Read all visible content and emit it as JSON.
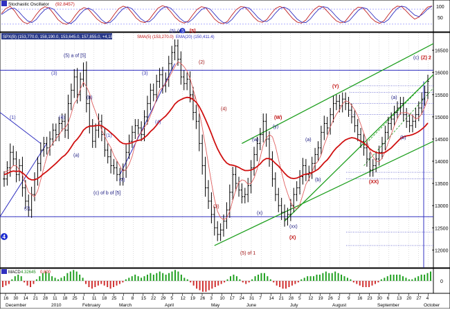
{
  "chart_data": {
    "type": "line",
    "stochastic_panel": {
      "title": "Stochastic Oscillator",
      "value_label": "(92.8457)",
      "ylim": [
        0,
        100
      ],
      "ticks": [
        "100",
        "50"
      ],
      "k_line": [
        62,
        82,
        91,
        74,
        48,
        29,
        21,
        33,
        58,
        79,
        90,
        84,
        62,
        38,
        24,
        19,
        30,
        55,
        76,
        86,
        80,
        60,
        40,
        27,
        22,
        35,
        60,
        82,
        92,
        86,
        66,
        44,
        30,
        26,
        38,
        62,
        84,
        94,
        88,
        68,
        46,
        31,
        24,
        33,
        57,
        79,
        90,
        85,
        63,
        40,
        26,
        21,
        31,
        56,
        78,
        90,
        88,
        70,
        48,
        32,
        27,
        38,
        61,
        82,
        91,
        84,
        62,
        42,
        28,
        24,
        36,
        60,
        80,
        92,
        88,
        70,
        50,
        33,
        25,
        30,
        52,
        74,
        88,
        86,
        67,
        45,
        30,
        23,
        34,
        58,
        80,
        92,
        90,
        74,
        55,
        40,
        48,
        70,
        88,
        93
      ],
      "d_line": [
        58,
        70,
        82,
        84,
        70,
        50,
        33,
        26,
        38,
        60,
        78,
        86,
        80,
        60,
        40,
        26,
        22,
        36,
        58,
        76,
        84,
        76,
        58,
        38,
        25,
        26,
        42,
        64,
        82,
        89,
        82,
        62,
        42,
        30,
        29,
        44,
        66,
        84,
        90,
        83,
        64,
        44,
        30,
        27,
        40,
        60,
        78,
        86,
        80,
        60,
        40,
        26,
        24,
        38,
        60,
        80,
        88,
        84,
        66,
        46,
        32,
        30,
        42,
        64,
        82,
        88,
        80,
        60,
        40,
        28,
        26,
        40,
        62,
        80,
        90,
        86,
        70,
        50,
        33,
        26,
        34,
        54,
        74,
        86,
        82,
        64,
        44,
        30,
        26,
        38,
        62,
        82,
        92,
        88,
        72,
        56,
        50,
        62,
        80,
        92
      ],
      "reference_lines": [
        80,
        20
      ]
    },
    "price_panel": {
      "header": "SPX(B) (153,770.0, 158,190.0, 153,645.0, 157,855.0, +4,185.00)",
      "sma_label": "SMA(5) (153,270.0)",
      "ema_label": "EMA(20) (150,411.4)",
      "y_ticks": [
        16500,
        16000,
        15500,
        15000,
        14500,
        14000,
        13500,
        13000,
        12500,
        12000
      ],
      "ylim": [
        11600,
        16900
      ],
      "closes": [
        13600,
        13850,
        14200,
        14050,
        13700,
        13900,
        13400,
        13100,
        12900,
        13250,
        13600,
        13950,
        14250,
        14400,
        14300,
        14500,
        14700,
        14600,
        14850,
        14900,
        14700,
        15300,
        15600,
        15900,
        15500,
        15850,
        16050,
        15300,
        14800,
        14450,
        14700,
        14900,
        14600,
        14250,
        14100,
        13900,
        13850,
        13700,
        13600,
        13800,
        14200,
        14450,
        14650,
        14800,
        14750,
        14600,
        15000,
        15300,
        15600,
        15500,
        15800,
        15950,
        15700,
        15850,
        16200,
        16450,
        16600,
        16300,
        15900,
        15750,
        15850,
        15500,
        15100,
        14900,
        14400,
        13900,
        13400,
        13100,
        12800,
        12500,
        12350,
        12450,
        12650,
        12900,
        13300,
        13700,
        13500,
        13350,
        13200,
        13250,
        13450,
        13850,
        14150,
        14400,
        14600,
        14900,
        14500,
        14050,
        13600,
        13250,
        13000,
        12850,
        12700,
        12800,
        13000,
        13250,
        13400,
        13650,
        13900,
        13700,
        13750,
        13950,
        14150,
        14300,
        14650,
        14850,
        14750,
        15050,
        15300,
        15350,
        15250,
        15400,
        15300,
        15150,
        15000,
        14800,
        14600,
        14450,
        14300,
        14050,
        13800,
        13900,
        14050,
        14200,
        14400,
        14650,
        14850,
        14950,
        15100,
        15200,
        15300,
        15050,
        14900,
        14800,
        14900,
        15050,
        15200,
        15400,
        15550,
        15800
      ],
      "ema_line": [
        13700,
        13720,
        13760,
        13780,
        13770,
        13780,
        13740,
        13680,
        13610,
        13580,
        13580,
        13610,
        13660,
        13720,
        13770,
        13830,
        13890,
        13950,
        14020,
        14090,
        14140,
        14220,
        14320,
        14430,
        14500,
        14590,
        14700,
        14760,
        14790,
        14790,
        14800,
        14810,
        14800,
        14750,
        14700,
        14640,
        14580,
        14510,
        14440,
        14400,
        14390,
        14400,
        14420,
        14450,
        14470,
        14480,
        14530,
        14590,
        14670,
        14730,
        14810,
        14900,
        14960,
        15020,
        15100,
        15190,
        15290,
        15350,
        15390,
        15420,
        15440,
        15430,
        15390,
        15330,
        15230,
        15100,
        14950,
        14790,
        14620,
        14440,
        14280,
        14150,
        14040,
        13960,
        13920,
        13910,
        13890,
        13860,
        13820,
        13790,
        13790,
        13800,
        13830,
        13880,
        13940,
        14020,
        14060,
        14060,
        14020,
        13950,
        13890,
        13810,
        13730,
        13660,
        13620,
        13610,
        13620,
        13650,
        13690,
        13710,
        13720,
        13740,
        13780,
        13820,
        13890,
        13970,
        14030,
        14120,
        14220,
        14300,
        14360,
        14430,
        14480,
        14510,
        14530,
        14520,
        14490,
        14450,
        14410,
        14350,
        14280,
        14230,
        14200,
        14180,
        14180,
        14200,
        14250,
        14300,
        14370,
        14440,
        14510,
        14550,
        14570,
        14580,
        14600,
        14630,
        14670,
        14720,
        14780,
        14860
      ],
      "sma_line": [
        13750,
        13780,
        13820,
        13900,
        13900,
        13800,
        13700,
        13500,
        13300,
        13250,
        13200,
        13330,
        13580,
        13850,
        14100,
        14300,
        14410,
        14500,
        14590,
        14710,
        14750,
        14860,
        15070,
        15300,
        15400,
        15630,
        15780,
        15680,
        15530,
        15290,
        15110,
        14910,
        14700,
        14560,
        14420,
        14310,
        14130,
        14010,
        13890,
        13770,
        13810,
        13930,
        14110,
        14380,
        14570,
        14650,
        14760,
        14860,
        15030,
        15200,
        15400,
        15600,
        15660,
        15760,
        15870,
        16000,
        16130,
        16240,
        16200,
        16130,
        16030,
        15860,
        15620,
        15380,
        15110,
        14760,
        14360,
        13940,
        13520,
        13150,
        12870,
        12730,
        12680,
        12720,
        12870,
        13120,
        13350,
        13520,
        13580,
        13560,
        13480,
        13500,
        13620,
        13820,
        14080,
        14370,
        14520,
        14600,
        14550,
        14340,
        14040,
        13750,
        13480,
        13270,
        13080,
        12950,
        12930,
        13030,
        13250,
        13480,
        13600,
        13760,
        13930,
        14000,
        14140,
        14370,
        14550,
        14770,
        14930,
        15060,
        15150,
        15290,
        15360,
        15340,
        15260,
        15160,
        15020,
        14830,
        14630,
        14440,
        14240,
        14100,
        14000,
        13990,
        14070,
        14220,
        14420,
        14610,
        14800,
        14960,
        15090,
        15090,
        15100,
        15060,
        15030,
        14950,
        14980,
        15070,
        15220,
        15400
      ],
      "ranges": [
        350,
        300,
        400,
        300,
        350,
        300,
        400,
        350,
        300,
        350,
        300,
        300,
        350,
        300,
        300,
        350,
        300,
        300,
        300,
        350,
        350,
        400,
        300,
        350,
        400,
        300,
        350,
        400,
        350,
        300,
        300,
        350,
        300,
        300,
        300,
        350,
        300,
        300,
        300,
        300,
        350,
        300,
        300,
        300,
        300,
        300,
        300,
        350,
        300,
        300,
        300,
        300,
        350,
        300,
        350,
        300,
        350,
        300,
        350,
        300,
        300,
        350,
        350,
        350,
        350,
        400,
        400,
        350,
        400,
        350,
        300,
        300,
        300,
        350,
        350,
        350,
        350,
        300,
        300,
        300,
        350,
        350,
        350,
        300,
        300,
        350,
        350,
        350,
        350,
        300,
        300,
        350,
        350,
        300,
        300,
        300,
        300,
        300,
        350,
        300,
        300,
        300,
        300,
        300,
        300,
        350,
        300,
        300,
        350,
        300,
        300,
        300,
        300,
        300,
        300,
        300,
        300,
        300,
        350,
        350,
        300,
        300,
        300,
        300,
        300,
        300,
        300,
        300,
        300,
        300,
        300,
        300,
        300,
        300,
        300,
        300,
        300,
        300,
        300,
        300
      ],
      "horizontal_lines": [
        16050,
        12750
      ],
      "dotted_lines": [
        15700,
        15550,
        15300,
        15050,
        13750,
        13600,
        12400,
        12100
      ],
      "wave_labels": [
        {
          "text": "(1)",
          "color": "#3a3ab0",
          "x": 14,
          "y": 14950
        },
        {
          "text": "(2)",
          "color": "#3a3ab0",
          "x": 35,
          "y": 12900
        },
        {
          "text": "(3)",
          "color": "#3a3ab0",
          "x": 74,
          "y": 15950
        },
        {
          "text": "(4)",
          "color": "#3a3ab0",
          "x": 85,
          "y": 14950
        },
        {
          "text": "(5) a of [5]",
          "color": "#1a1a80",
          "x": 92,
          "y": 16350
        },
        {
          "text": "(b)",
          "color": "#1a1a80",
          "x": 125,
          "y": 15400
        },
        {
          "text": "(a)",
          "color": "#1a1a80",
          "x": 106,
          "y": 14100
        },
        {
          "text": "(1)",
          "color": "#3a3ab0",
          "x": 153,
          "y": 14550
        },
        {
          "text": "(2)",
          "color": "#3a3ab0",
          "x": 172,
          "y": 13550
        },
        {
          "text": "(c) of b of [5]",
          "color": "#1a1a80",
          "x": 135,
          "y": 13250
        },
        {
          "text": "(3)",
          "color": "#3a3ab0",
          "x": 205,
          "y": 15950
        },
        {
          "text": "(4)",
          "color": "#3a3ab0",
          "x": 224,
          "y": 14850
        },
        {
          "text": "(5)",
          "color": "#3a3ab0",
          "x": 245,
          "y": 16900
        },
        {
          "text": "(c)",
          "color": "#1a1a80",
          "x": 256,
          "y": 16900
        },
        {
          "text": "5",
          "color": "#ffffff",
          "x": 262,
          "y": 16900
        },
        {
          "text": "[5]",
          "color": "#c01010",
          "x": 274,
          "y": 16900
        },
        {
          "text": "(2)",
          "color": "#a01010",
          "x": 287,
          "y": 16200
        },
        {
          "text": "(1)",
          "color": "#a01010",
          "x": 274,
          "y": 15400
        },
        {
          "text": "(4)",
          "color": "#a01010",
          "x": 319,
          "y": 15150
        },
        {
          "text": "(3)",
          "color": "#a01010",
          "x": 308,
          "y": 12950
        },
        {
          "text": "(5) of 1",
          "color": "#a01010",
          "x": 347,
          "y": 11900
        },
        {
          "text": "(w)",
          "color": "#1a1a80",
          "x": 364,
          "y": 14450
        },
        {
          "text": "(W)",
          "color": "#c01010",
          "x": 396,
          "y": 14950
        },
        {
          "text": "(y)",
          "color": "#1a1a80",
          "x": 394,
          "y": 14750
        },
        {
          "text": "(x)",
          "color": "#1a1a80",
          "x": 371,
          "y": 12800
        },
        {
          "text": "(a)",
          "color": "#1a1a80",
          "x": 441,
          "y": 14450
        },
        {
          "text": "(b)",
          "color": "#1a1a80",
          "x": 455,
          "y": 13550
        },
        {
          "text": "(xx)",
          "color": "#1a1a80",
          "x": 418,
          "y": 12500
        },
        {
          "text": "(X)",
          "color": "#c01010",
          "x": 418,
          "y": 12250
        },
        {
          "text": "(Y)",
          "color": "#c01010",
          "x": 480,
          "y": 15650
        },
        {
          "text": "(a)",
          "color": "#1a1a80",
          "x": 565,
          "y": 15400
        },
        {
          "text": "(b)",
          "color": "#1a1a80",
          "x": 578,
          "y": 14500
        },
        {
          "text": "(XX)",
          "color": "#c01010",
          "x": 533,
          "y": 13500
        },
        {
          "text": "(c)",
          "color": "#1a1a80",
          "x": 597,
          "y": 16300
        },
        {
          "text": "(Z)",
          "color": "#c01010",
          "x": 608,
          "y": 16300
        },
        {
          "text": "2",
          "color": "#c01010",
          "x": 619,
          "y": 16300
        }
      ],
      "pane_badge": "4"
    },
    "macd_panel": {
      "label": "MACD",
      "value1": "4.32645",
      "value2": "0.800",
      "ticks": [
        "0"
      ],
      "ylim": [
        -4,
        4
      ],
      "histogram": [
        -2,
        -1.5,
        -1,
        0.5,
        1.5,
        2,
        1.5,
        -0.5,
        -1.5,
        -2,
        -1,
        0.5,
        1.5,
        2.5,
        3,
        2.5,
        1.5,
        1,
        0.5,
        1,
        1.5,
        2.5,
        3,
        3.5,
        3,
        2,
        1,
        -1,
        -2,
        -2.5,
        -2,
        -1.5,
        -1,
        -1.5,
        -2,
        -2.5,
        -2,
        -1.5,
        -1,
        -0.5,
        0.5,
        1,
        1.5,
        2,
        1.5,
        1,
        1.5,
        2,
        2.5,
        2,
        2.5,
        3,
        2.5,
        2,
        2.5,
        3,
        3.5,
        3,
        2,
        1,
        0.5,
        -0.5,
        -1.5,
        -2.5,
        -3,
        -3.5,
        -3.5,
        -3,
        -2.5,
        -2,
        -1.5,
        -1,
        -0.5,
        0.5,
        1.5,
        2,
        1.5,
        0.5,
        -0.5,
        -1,
        -0.5,
        0.5,
        1.5,
        2,
        2.5,
        2.5,
        1.5,
        0.5,
        -0.5,
        -1.5,
        -2,
        -2.5,
        -2.5,
        -2,
        -1.5,
        -1,
        -0.5,
        0.5,
        1,
        1.5,
        1.5,
        1.5,
        2,
        2,
        2.5,
        3,
        2.5,
        2.5,
        3,
        2.5,
        2,
        1.5,
        1,
        0.5,
        -0.5,
        -1,
        -1.5,
        -2,
        -2,
        -2,
        -1.5,
        -1,
        -0.5,
        0.5,
        1,
        1.5,
        2,
        2,
        2,
        2,
        1.5,
        1,
        0.5,
        0.5,
        1,
        1.5,
        2,
        2,
        2.5,
        3
      ]
    },
    "x_axis": {
      "day_labels": [
        "16",
        "30",
        "14",
        "21",
        "28",
        "11",
        "18",
        "25",
        "1",
        "11",
        "18",
        "25",
        "1",
        "8",
        "15",
        "22",
        "29",
        "5",
        "12",
        "19",
        "26",
        "3",
        "10",
        "17",
        "24",
        "31",
        "7",
        "14",
        "21",
        "28",
        "5",
        "12",
        "19",
        "26",
        "2",
        "9",
        "16",
        "23",
        "30",
        "6",
        "13",
        "20",
        "27",
        "4"
      ],
      "month_labels": [
        "December",
        "2010",
        "February",
        "March",
        "April",
        "May",
        "June",
        "July",
        "August",
        "September",
        "October"
      ]
    }
  }
}
